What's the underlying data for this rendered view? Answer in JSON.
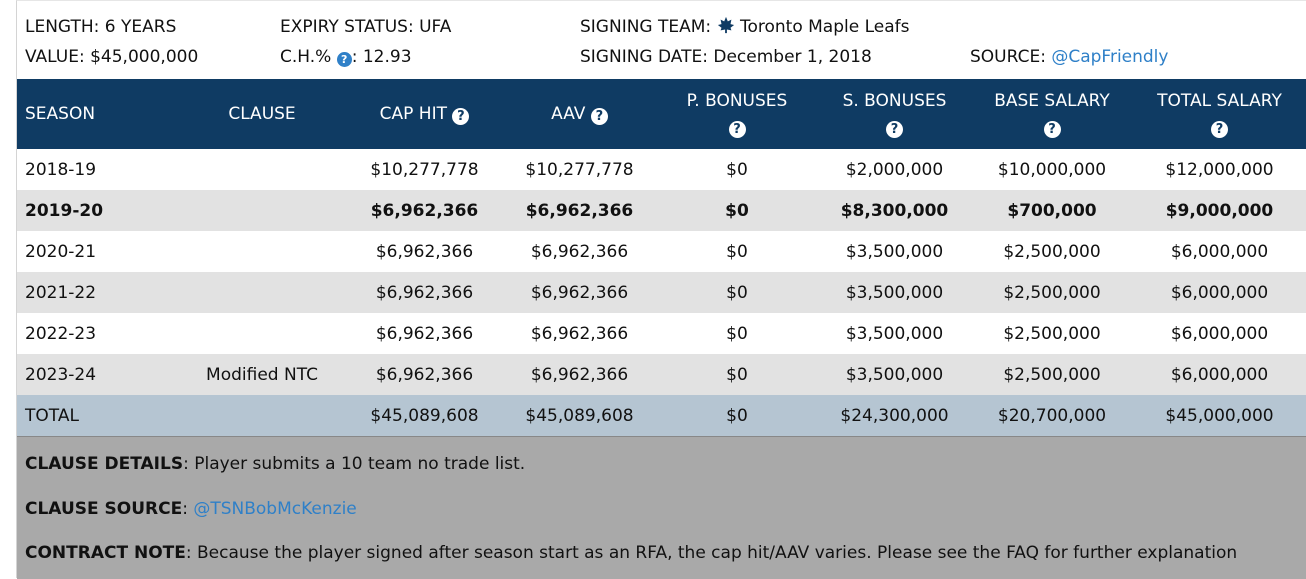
{
  "meta": {
    "length": "LENGTH: 6 YEARS",
    "value": "VALUE: $45,000,000",
    "expiry": "EXPIRY STATUS: UFA",
    "ch_label": "C.H.%",
    "ch_value": ": 12.93",
    "signing_team_label": "SIGNING TEAM:",
    "signing_team": "Toronto Maple Leafs",
    "signing_date": "SIGNING DATE: December 1, 2018",
    "source_label": "SOURCE:",
    "source_link": "@CapFriendly"
  },
  "table": {
    "headers": [
      "SEASON",
      "CLAUSE",
      "CAP HIT",
      "AAV",
      "P. BONUSES",
      "S. BONUSES",
      "BASE SALARY",
      "TOTAL SALARY"
    ],
    "help_glyph": "?",
    "rows": [
      [
        "2018-19",
        "",
        "$10,277,778",
        "$10,277,778",
        "$0",
        "$2,000,000",
        "$10,000,000",
        "$12,000,000"
      ],
      [
        "2019-20",
        "",
        "$6,962,366",
        "$6,962,366",
        "$0",
        "$8,300,000",
        "$700,000",
        "$9,000,000"
      ],
      [
        "2020-21",
        "",
        "$6,962,366",
        "$6,962,366",
        "$0",
        "$3,500,000",
        "$2,500,000",
        "$6,000,000"
      ],
      [
        "2021-22",
        "",
        "$6,962,366",
        "$6,962,366",
        "$0",
        "$3,500,000",
        "$2,500,000",
        "$6,000,000"
      ],
      [
        "2022-23",
        "",
        "$6,962,366",
        "$6,962,366",
        "$0",
        "$3,500,000",
        "$2,500,000",
        "$6,000,000"
      ],
      [
        "2023-24",
        "Modified NTC",
        "$6,962,366",
        "$6,962,366",
        "$0",
        "$3,500,000",
        "$2,500,000",
        "$6,000,000"
      ]
    ],
    "total": [
      "TOTAL",
      "",
      "$45,089,608",
      "$45,089,608",
      "$0",
      "$24,300,000",
      "$20,700,000",
      "$45,000,000"
    ]
  },
  "notes": {
    "clause_details_label": "CLAUSE DETAILS",
    "clause_details_text": ": Player submits a 10 team no trade list.",
    "clause_source_label": "CLAUSE SOURCE",
    "clause_source_sep": ": ",
    "clause_source_link": "@TSNBobMcKenzie",
    "contract_note_label": "CONTRACT NOTE",
    "contract_note_text": ": Because the player signed after season start as an RFA, the cap hit/AAV varies. Please see the FAQ for further explanation"
  },
  "colors": {
    "header_bg": "#0f3b63",
    "alt_row": "#e2e2e2",
    "total_row": "#b5c5d2",
    "notes_bg": "#a9a9a9",
    "link": "#2f80c8"
  },
  "icons": {
    "help": "question-circle-icon",
    "team": "maple-leaf-icon"
  }
}
